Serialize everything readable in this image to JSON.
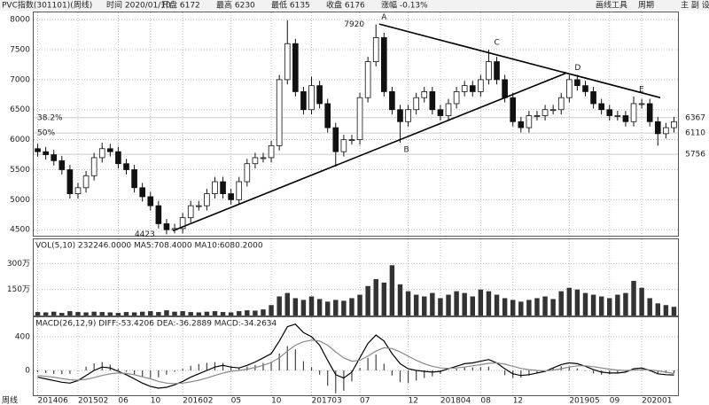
{
  "header": {
    "symbol": "PVC指数(301101)(周线)",
    "info": [
      "时间 2020/01/10",
      "开盘 6172",
      "最高 6230",
      "最低 6135",
      "收盘 6176",
      "涨幅 -0.13%"
    ],
    "tools": [
      "画线工具",
      "周期",
      "主 副 设"
    ],
    "period_label": "周线"
  },
  "chart_data": [
    {
      "type": "candlestick",
      "categories": [
        "201406",
        null,
        null,
        null,
        null,
        "201502",
        null,
        null,
        null,
        null,
        "06",
        null,
        null,
        null,
        "10",
        null,
        null,
        null,
        "201602",
        null,
        null,
        null,
        null,
        null,
        "05",
        null,
        null,
        null,
        null,
        "10",
        null,
        null,
        null,
        null,
        "201703",
        null,
        null,
        null,
        null,
        null,
        "07",
        null,
        null,
        null,
        null,
        null,
        "12",
        null,
        null,
        null,
        "201804",
        null,
        null,
        null,
        null,
        "08",
        null,
        null,
        null,
        "12",
        null,
        null,
        null,
        null,
        null,
        null,
        "201905",
        null,
        null,
        null,
        null,
        "09",
        null,
        null,
        null,
        "202001",
        null,
        null,
        null,
        null
      ],
      "opens": [
        5850,
        5800,
        5750,
        5650,
        5500,
        5100,
        5200,
        5400,
        5700,
        5850,
        5800,
        5600,
        5500,
        5200,
        5050,
        4900,
        4600,
        4500,
        4520,
        4700,
        4900,
        4900,
        5100,
        5300,
        5100,
        5000,
        5300,
        5600,
        5700,
        5700,
        5900,
        7000,
        7600,
        6800,
        6500,
        6900,
        6600,
        6200,
        5800,
        6000,
        6000,
        6700,
        7300,
        7700,
        6800,
        6500,
        6300,
        6500,
        6700,
        6800,
        6500,
        6400,
        6600,
        6800,
        6900,
        6800,
        7000,
        7300,
        7000,
        6700,
        6300,
        6200,
        6400,
        6400,
        6500,
        6500,
        6700,
        7000,
        6900,
        6800,
        6600,
        6500,
        6400,
        6400,
        6300,
        6600,
        6600,
        6300,
        6100,
        6200
      ],
      "highs": [
        5930,
        5880,
        5830,
        5730,
        5580,
        5280,
        5480,
        5780,
        5950,
        5930,
        5880,
        5680,
        5580,
        5280,
        5130,
        4980,
        4680,
        4600,
        4780,
        4980,
        4980,
        5180,
        5380,
        5380,
        5180,
        5380,
        5680,
        5780,
        5780,
        5980,
        7080,
        7990,
        7680,
        6880,
        7050,
        6980,
        6680,
        6280,
        6080,
        6080,
        6780,
        7380,
        7920,
        7780,
        6880,
        6580,
        6580,
        6780,
        6880,
        6880,
        6580,
        6680,
        6880,
        6980,
        6980,
        7080,
        7500,
        7380,
        7080,
        6780,
        6380,
        6480,
        6480,
        6580,
        6580,
        6780,
        7080,
        7080,
        6980,
        6880,
        6680,
        6580,
        6480,
        6480,
        6720,
        6680,
        6680,
        6380,
        6280,
        6380
      ],
      "lows": [
        5720,
        5670,
        5570,
        5420,
        5020,
        5020,
        5120,
        5320,
        5620,
        5720,
        5520,
        5420,
        5120,
        4970,
        4820,
        4520,
        4423,
        4440,
        4440,
        4620,
        4820,
        4820,
        5020,
        5020,
        4920,
        4920,
        5220,
        5520,
        5620,
        5620,
        5820,
        6920,
        6720,
        6420,
        6420,
        6520,
        6120,
        5550,
        5720,
        5920,
        5920,
        6620,
        7220,
        6720,
        6420,
        5950,
        6220,
        6420,
        6620,
        6420,
        6320,
        6320,
        6520,
        6720,
        6720,
        6720,
        6920,
        6920,
        6620,
        6220,
        6120,
        6120,
        6320,
        6320,
        6420,
        6420,
        6620,
        6820,
        6720,
        6520,
        6420,
        6320,
        6320,
        6220,
        6220,
        6520,
        6220,
        5900,
        6020,
        6120
      ],
      "closes": [
        5800,
        5750,
        5650,
        5500,
        5100,
        5200,
        5400,
        5700,
        5850,
        5800,
        5600,
        5500,
        5200,
        5050,
        4900,
        4600,
        4500,
        4520,
        4700,
        4900,
        4900,
        5100,
        5300,
        5100,
        5000,
        5300,
        5600,
        5700,
        5700,
        5900,
        7000,
        7600,
        6800,
        6500,
        6900,
        6600,
        6200,
        5800,
        6000,
        6000,
        6700,
        7300,
        7700,
        6800,
        6500,
        6300,
        6500,
        6700,
        6800,
        6500,
        6400,
        6600,
        6800,
        6900,
        6800,
        7000,
        7300,
        7000,
        6700,
        6300,
        6200,
        6400,
        6400,
        6500,
        6500,
        6700,
        7000,
        6900,
        6800,
        6600,
        6500,
        6400,
        6400,
        6300,
        6600,
        6600,
        6300,
        6100,
        6200,
        6300
      ],
      "ylim": [
        4400,
        8120
      ],
      "yticks": [
        4500,
        5000,
        5500,
        6000,
        6500,
        7000,
        7500,
        8000
      ],
      "grid": true,
      "points": [
        {
          "label": "A",
          "index": 42,
          "price": 7920,
          "pos": "above"
        },
        {
          "label": "B",
          "index": 45,
          "price": 5950,
          "pos": "below"
        },
        {
          "label": "C",
          "index": 56,
          "price": 7500,
          "pos": "above"
        },
        {
          "label": "D",
          "index": 66,
          "price": 7080,
          "pos": "above"
        },
        {
          "label": "E",
          "index": 74,
          "price": 6720,
          "pos": "above"
        },
        {
          "label": "7920",
          "index": 41,
          "price": 7920,
          "pos": "left"
        },
        {
          "label": "4423",
          "index": 15,
          "price": 4423,
          "pos": "left"
        }
      ],
      "trendlines": [
        {
          "x": [
            16.8,
            65.7
          ],
          "y": [
            4484,
            7114
          ]
        },
        {
          "x": [
            42.4,
            77.3
          ],
          "y": [
            7926,
            6700
          ]
        }
      ],
      "levels": [
        {
          "value": 6367,
          "pct": "38.2%"
        },
        {
          "value": 6110,
          "pct": "50%"
        },
        {
          "value": 5756
        }
      ]
    },
    {
      "type": "bar",
      "title": "VOL(5,10) 232246.0000  MA5:708.4000  MA10:6080.2000",
      "values": [
        20,
        18,
        22,
        15,
        25,
        20,
        18,
        22,
        20,
        18,
        15,
        20,
        18,
        22,
        25,
        20,
        30,
        22,
        25,
        20,
        18,
        22,
        25,
        20,
        18,
        25,
        30,
        28,
        35,
        60,
        110,
        130,
        100,
        90,
        110,
        95,
        80,
        90,
        85,
        100,
        120,
        170,
        210,
        190,
        290,
        180,
        140,
        120,
        110,
        130,
        100,
        120,
        140,
        130,
        110,
        150,
        140,
        120,
        100,
        90,
        80,
        90,
        100,
        110,
        95,
        140,
        160,
        150,
        130,
        120,
        110,
        100,
        120,
        130,
        200,
        160,
        100,
        70,
        60,
        50
      ],
      "color": "#333333",
      "ylim": [
        0,
        440
      ],
      "yticks": [
        {
          "value": 150,
          "label": "150万"
        },
        {
          "value": 300,
          "label": "300万"
        }
      ]
    },
    {
      "type": "macd",
      "title": "MACD(26,12,9) DIFF:-53.4206 DEA:-36.2889 MACD:-34.2634",
      "series": [
        {
          "name": "DIFF",
          "color": "#000000",
          "values": [
            -80,
            -100,
            -120,
            -140,
            -150,
            -120,
            -60,
            0,
            40,
            30,
            -10,
            -50,
            -100,
            -150,
            -190,
            -210,
            -200,
            -170,
            -130,
            -80,
            -40,
            0,
            40,
            60,
            40,
            30,
            60,
            100,
            150,
            200,
            350,
            520,
            550,
            450,
            400,
            300,
            120,
            -50,
            -90,
            -20,
            150,
            320,
            420,
            350,
            200,
            80,
            20,
            0,
            -10,
            -20,
            -10,
            20,
            50,
            80,
            90,
            110,
            130,
            90,
            20,
            -40,
            -60,
            -50,
            -30,
            -10,
            30,
            70,
            90,
            80,
            50,
            10,
            -20,
            -30,
            -30,
            -20,
            20,
            30,
            0,
            -40,
            -50,
            -53.4206
          ]
        },
        {
          "name": "DEA",
          "color": "#888888",
          "values": [
            -60,
            -70,
            -80,
            -95,
            -110,
            -115,
            -105,
            -85,
            -60,
            -40,
            -30,
            -35,
            -50,
            -75,
            -100,
            -130,
            -150,
            -155,
            -150,
            -135,
            -115,
            -90,
            -60,
            -30,
            -10,
            0,
            15,
            35,
            60,
            95,
            150,
            230,
            300,
            340,
            360,
            350,
            300,
            220,
            150,
            110,
            120,
            170,
            230,
            270,
            260,
            220,
            170,
            120,
            80,
            50,
            30,
            25,
            30,
            40,
            55,
            70,
            85,
            90,
            75,
            50,
            25,
            10,
            0,
            -5,
            5,
            20,
            40,
            55,
            55,
            45,
            30,
            15,
            5,
            0,
            5,
            10,
            8,
            -5,
            -20,
            -36.2889
          ]
        },
        {
          "name": "MACD",
          "color": "#444444",
          "values": [
            -20,
            -30,
            -40,
            -45,
            -40,
            -5,
            45,
            85,
            100,
            70,
            20,
            -15,
            -50,
            -75,
            -90,
            -80,
            -50,
            -15,
            20,
            55,
            75,
            90,
            100,
            90,
            50,
            30,
            45,
            65,
            90,
            105,
            200,
            290,
            250,
            110,
            40,
            -50,
            -180,
            -270,
            -240,
            -130,
            30,
            150,
            190,
            80,
            -60,
            -140,
            -150,
            -120,
            -90,
            -70,
            -40,
            -5,
            20,
            40,
            35,
            40,
            45,
            0,
            -55,
            -90,
            -85,
            -60,
            -30,
            -5,
            25,
            50,
            50,
            25,
            -5,
            -35,
            -50,
            -45,
            -35,
            -20,
            15,
            20,
            -8,
            -35,
            -30,
            -34.2634
          ]
        }
      ],
      "ylim": [
        -305,
        632
      ],
      "yticks": [
        0,
        400
      ]
    }
  ]
}
